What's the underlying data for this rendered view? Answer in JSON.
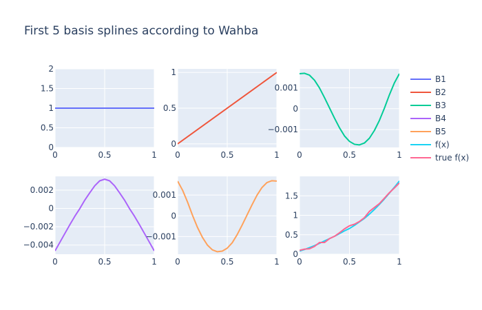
{
  "chart_data": {
    "type": "line",
    "title": "First 5 basis splines according to Wahba",
    "background": "#ffffff",
    "plot_bg": "#e5ecf6",
    "grid_color": "#ffffff",
    "grid": true,
    "legend_position": "right",
    "legend": [
      {
        "name": "B1",
        "color": "#636efa"
      },
      {
        "name": "B2",
        "color": "#ef553b"
      },
      {
        "name": "B3",
        "color": "#00cc96"
      },
      {
        "name": "B4",
        "color": "#ab63fa"
      },
      {
        "name": "B5",
        "color": "#ffa15a"
      },
      {
        "name": "f(x)",
        "color": "#19d3f3"
      },
      {
        "name": "true f(x)",
        "color": "#ff6692"
      }
    ],
    "panels": [
      {
        "xlim": [
          0,
          1
        ],
        "ylim": [
          0,
          2
        ],
        "xticks": [
          0,
          0.5,
          1
        ],
        "xtick_labels": [
          "0",
          "0.5",
          "1"
        ],
        "yticks": [
          0,
          0.5,
          1,
          1.5,
          2
        ],
        "ytick_labels": [
          "0",
          "0.5",
          "1",
          "1.5",
          "2"
        ],
        "series": [
          {
            "name": "B1",
            "color": "#636efa",
            "x": [
              0,
              1
            ],
            "y": [
              1,
              1
            ]
          }
        ]
      },
      {
        "xlim": [
          0,
          1
        ],
        "ylim": [
          -0.05,
          1.05
        ],
        "xticks": [
          0,
          0.5,
          1
        ],
        "xtick_labels": [
          "0",
          "0.5",
          "1"
        ],
        "yticks": [
          0,
          0.5,
          1
        ],
        "ytick_labels": [
          "0",
          "0.5",
          "1"
        ],
        "series": [
          {
            "name": "B2",
            "color": "#ef553b",
            "x": [
              0,
              1
            ],
            "y": [
              0,
              1
            ]
          }
        ]
      },
      {
        "xlim": [
          0,
          1
        ],
        "ylim": [
          -0.00185,
          0.0019
        ],
        "xticks": [
          0,
          0.5,
          1
        ],
        "xtick_labels": [
          "0",
          "0.5",
          "1"
        ],
        "yticks": [
          -0.001,
          0,
          0.001
        ],
        "ytick_labels": [
          "−0.001",
          "0",
          "0.001"
        ],
        "series": [
          {
            "name": "B3",
            "color": "#00cc96",
            "x": [
              0,
              0.05,
              0.1,
              0.15,
              0.2,
              0.25,
              0.3,
              0.35,
              0.4,
              0.45,
              0.5,
              0.55,
              0.6,
              0.65,
              0.7,
              0.75,
              0.8,
              0.85,
              0.9,
              0.95,
              1
            ],
            "y": [
              0.00167,
              0.00169,
              0.0016,
              0.00136,
              0.00099,
              0.00053,
              4e-05,
              -0.00045,
              -0.00091,
              -0.0013,
              -0.00156,
              -0.0017,
              -0.00173,
              -0.00164,
              -0.00141,
              -0.00104,
              -0.00056,
              2e-05,
              0.00066,
              0.00123,
              0.00167
            ]
          }
        ]
      },
      {
        "xlim": [
          0,
          1
        ],
        "ylim": [
          -0.005,
          0.0035
        ],
        "xticks": [
          0,
          0.5,
          1
        ],
        "xtick_labels": [
          "0",
          "0.5",
          "1"
        ],
        "yticks": [
          -0.004,
          -0.002,
          0,
          0.002
        ],
        "ytick_labels": [
          "−0.004",
          "−0.002",
          "0",
          "0.002"
        ],
        "series": [
          {
            "name": "B4",
            "color": "#ab63fa",
            "x": [
              0,
              0.05,
              0.1,
              0.15,
              0.2,
              0.25,
              0.3,
              0.35,
              0.4,
              0.45,
              0.5,
              0.55,
              0.6,
              0.65,
              0.7,
              0.75,
              0.8,
              0.85,
              0.9,
              0.95,
              1
            ],
            "y": [
              -0.00463,
              -0.00367,
              -0.00271,
              -0.00176,
              -0.00084,
              -1e-05,
              0.00091,
              0.00171,
              0.00247,
              0.00301,
              0.00319,
              0.00301,
              0.00247,
              0.00171,
              0.00091,
              -1e-05,
              -0.00084,
              -0.00176,
              -0.00271,
              -0.00367,
              -0.00463
            ]
          }
        ]
      },
      {
        "xlim": [
          0,
          1
        ],
        "ylim": [
          -0.00185,
          0.0019
        ],
        "xticks": [
          0,
          0.5,
          1
        ],
        "xtick_labels": [
          "0",
          "0.5",
          "1"
        ],
        "yticks": [
          -0.001,
          0,
          0.001
        ],
        "ytick_labels": [
          "−0.001",
          "0",
          "0.001"
        ],
        "series": [
          {
            "name": "B5",
            "color": "#ffa15a",
            "x": [
              0,
              0.05,
              0.1,
              0.15,
              0.2,
              0.25,
              0.3,
              0.35,
              0.4,
              0.45,
              0.5,
              0.55,
              0.6,
              0.65,
              0.7,
              0.75,
              0.8,
              0.85,
              0.9,
              0.95,
              1
            ],
            "y": [
              0.00167,
              0.00123,
              0.00066,
              2e-05,
              -0.00056,
              -0.00104,
              -0.00141,
              -0.00164,
              -0.00173,
              -0.0017,
              -0.00156,
              -0.0013,
              -0.00091,
              -0.00045,
              4e-05,
              0.00053,
              0.00099,
              0.00136,
              0.0016,
              0.00169,
              0.00167
            ]
          }
        ]
      },
      {
        "xlim": [
          0,
          1
        ],
        "ylim": [
          0,
          2
        ],
        "xticks": [
          0,
          0.5,
          1
        ],
        "xtick_labels": [
          "0",
          "0.5",
          "1"
        ],
        "yticks": [
          0,
          0.5,
          1,
          1.5
        ],
        "ytick_labels": [
          "0",
          "0.5",
          "1",
          "1.5"
        ],
        "series": [
          {
            "name": "f(x)",
            "color": "#19d3f3",
            "x": [
              0,
              0.05,
              0.1,
              0.15,
              0.2,
              0.25,
              0.3,
              0.35,
              0.4,
              0.45,
              0.5,
              0.55,
              0.6,
              0.65,
              0.7,
              0.75,
              0.8,
              0.85,
              0.9,
              0.95,
              1
            ],
            "y": [
              0.08,
              0.12,
              0.17,
              0.22,
              0.28,
              0.34,
              0.4,
              0.46,
              0.53,
              0.6,
              0.66,
              0.74,
              0.83,
              0.92,
              1.03,
              1.15,
              1.28,
              1.42,
              1.57,
              1.72,
              1.88
            ]
          },
          {
            "name": "true f(x)",
            "color": "#ff6692",
            "x": [
              0,
              0.05,
              0.1,
              0.15,
              0.2,
              0.25,
              0.3,
              0.35,
              0.4,
              0.45,
              0.5,
              0.55,
              0.6,
              0.65,
              0.7,
              0.75,
              0.8,
              0.85,
              0.9,
              0.95,
              1
            ],
            "y": [
              0.1,
              0.13,
              0.14,
              0.2,
              0.3,
              0.3,
              0.4,
              0.46,
              0.55,
              0.65,
              0.73,
              0.77,
              0.84,
              0.94,
              1.1,
              1.2,
              1.3,
              1.44,
              1.58,
              1.7,
              1.83
            ]
          }
        ]
      }
    ]
  }
}
